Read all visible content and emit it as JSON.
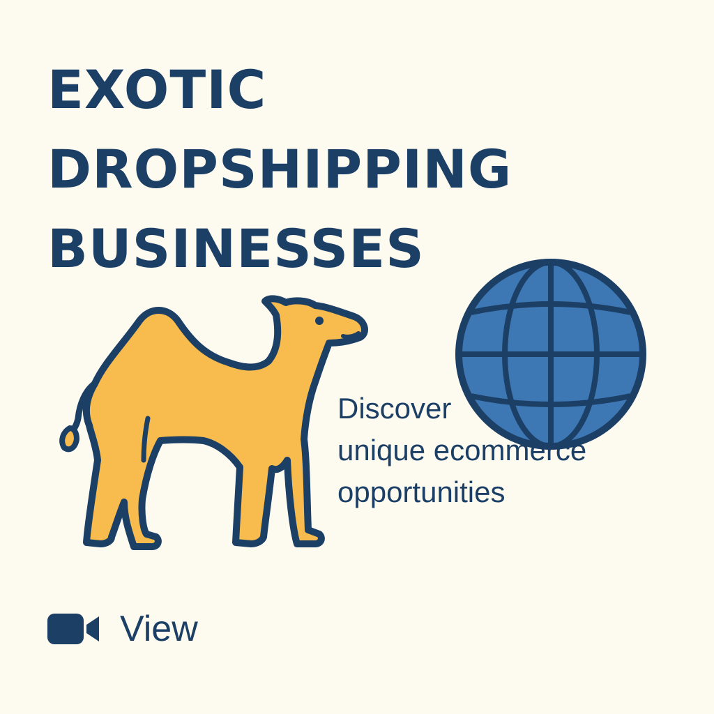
{
  "title": {
    "line1": "EXOTIC",
    "line2": "DROPSHIPPING",
    "line3": "BUSINESSES"
  },
  "tagline": {
    "line1": "Discover",
    "line2": "unique ecommerce",
    "line3": "opportunities"
  },
  "view_button": {
    "label": "View",
    "icon": "video-camera-icon"
  },
  "illustrations": {
    "camel": "camel-icon",
    "globe": "globe-icon"
  },
  "colors": {
    "background": "#fdfaf0",
    "text": "#1c3f66",
    "camel_fill": "#f8bb4d",
    "globe_fill": "#3d77b4",
    "outline": "#1c3f66"
  }
}
